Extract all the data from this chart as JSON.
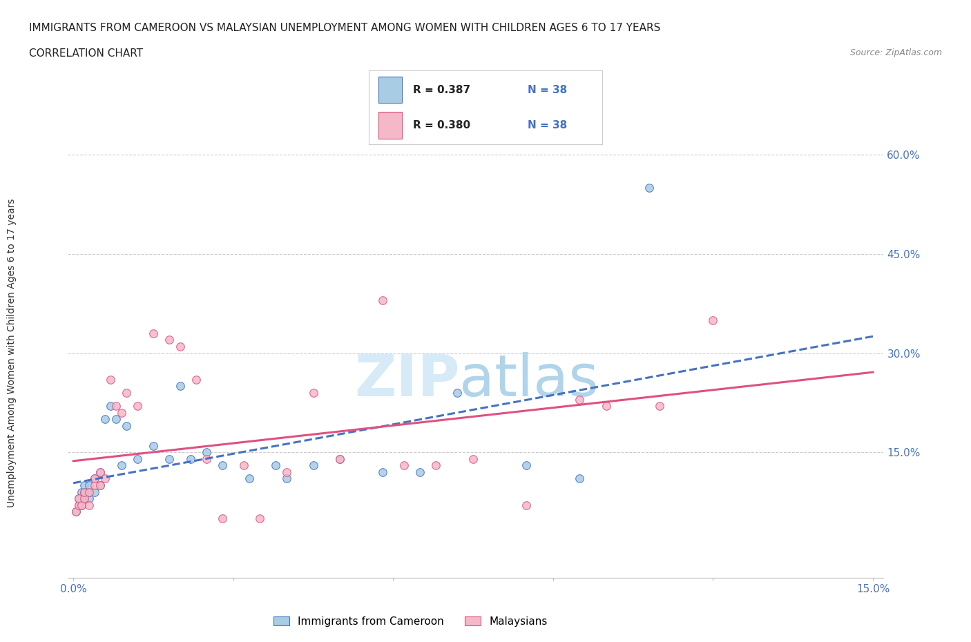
{
  "title": "IMMIGRANTS FROM CAMEROON VS MALAYSIAN UNEMPLOYMENT AMONG WOMEN WITH CHILDREN AGES 6 TO 17 YEARS",
  "subtitle": "CORRELATION CHART",
  "source": "Source: ZipAtlas.com",
  "ylabel": "Unemployment Among Women with Children Ages 6 to 17 years",
  "color_blue": "#a8cce4",
  "color_pink": "#f4b8c8",
  "color_line_blue": "#4472c4",
  "color_line_pink": "#e05080",
  "color_text_blue": "#4472c4",
  "watermark_zip_color": "#d6eaf8",
  "watermark_atlas_color": "#b0d4ea",
  "R_blue": 0.387,
  "R_pink": 0.38,
  "N": 38,
  "blue_x": [
    0.0005,
    0.001,
    0.001,
    0.0015,
    0.0015,
    0.002,
    0.002,
    0.002,
    0.003,
    0.003,
    0.003,
    0.004,
    0.004,
    0.005,
    0.005,
    0.006,
    0.007,
    0.008,
    0.009,
    0.01,
    0.012,
    0.015,
    0.018,
    0.02,
    0.022,
    0.025,
    0.028,
    0.033,
    0.038,
    0.04,
    0.045,
    0.05,
    0.058,
    0.065,
    0.072,
    0.085,
    0.095,
    0.108
  ],
  "blue_y": [
    0.06,
    0.07,
    0.08,
    0.07,
    0.09,
    0.08,
    0.09,
    0.1,
    0.08,
    0.09,
    0.1,
    0.09,
    0.11,
    0.1,
    0.12,
    0.2,
    0.22,
    0.2,
    0.13,
    0.19,
    0.14,
    0.16,
    0.14,
    0.25,
    0.14,
    0.15,
    0.13,
    0.11,
    0.13,
    0.11,
    0.13,
    0.14,
    0.12,
    0.12,
    0.24,
    0.13,
    0.11,
    0.55
  ],
  "pink_x": [
    0.0005,
    0.001,
    0.001,
    0.0015,
    0.002,
    0.002,
    0.003,
    0.003,
    0.004,
    0.004,
    0.005,
    0.005,
    0.006,
    0.007,
    0.008,
    0.009,
    0.01,
    0.012,
    0.015,
    0.018,
    0.02,
    0.023,
    0.025,
    0.028,
    0.032,
    0.035,
    0.04,
    0.045,
    0.05,
    0.058,
    0.062,
    0.068,
    0.075,
    0.085,
    0.095,
    0.1,
    0.11,
    0.12
  ],
  "pink_y": [
    0.06,
    0.07,
    0.08,
    0.07,
    0.08,
    0.09,
    0.07,
    0.09,
    0.1,
    0.11,
    0.1,
    0.12,
    0.11,
    0.26,
    0.22,
    0.21,
    0.24,
    0.22,
    0.33,
    0.32,
    0.31,
    0.26,
    0.14,
    0.05,
    0.13,
    0.05,
    0.12,
    0.24,
    0.14,
    0.38,
    0.13,
    0.13,
    0.14,
    0.07,
    0.23,
    0.22,
    0.22,
    0.35
  ]
}
